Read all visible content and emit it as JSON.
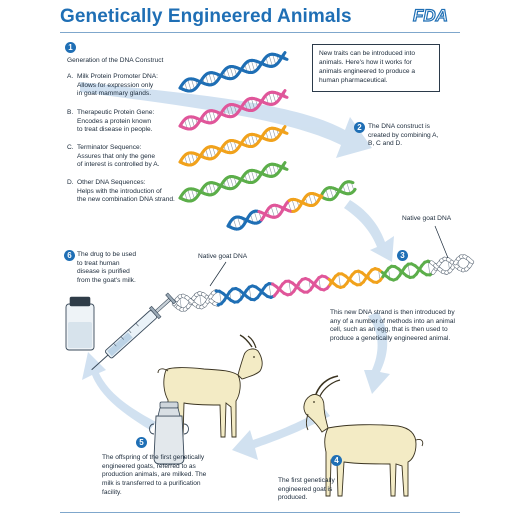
{
  "header": {
    "title": "Genetically Engineered Animals",
    "logo": "FDA"
  },
  "intro": "New traits can be introduced into animals. Here's how it works for animals engineered to produce a human pharmaceutical.",
  "steps": {
    "s1": {
      "num": "1",
      "title": "Generation of the DNA Construct"
    },
    "s2": {
      "num": "2",
      "text": "The DNA construct is created by combining A, B, C and D."
    },
    "s3": {
      "num": "3",
      "text": "This new DNA strand is then introduced by any of a number of methods into an animal cell, such as an egg, that is then used to produce a genetically engineered animal."
    },
    "s4": {
      "num": "4",
      "text": "The first genetically engineered goat is produced."
    },
    "s5": {
      "num": "5",
      "text": "The offspring of the first genetically engineered goats, referred to as production animals, are milked. The milk is transferred to a purification facility."
    },
    "s6": {
      "num": "6",
      "text": "The drug to be used to treat human disease is purified from the goat's milk."
    }
  },
  "components": [
    {
      "letter": "A.",
      "name": "Milk Protein Promoter DNA:",
      "desc": [
        "Allows for expression only",
        "in goat mammary glands."
      ],
      "color": "#1f6fb5"
    },
    {
      "letter": "B.",
      "name": "Therapeutic Protein Gene:",
      "desc": [
        "Encodes a protein known",
        "to treat disease in people."
      ],
      "color": "#e0569a"
    },
    {
      "letter": "C.",
      "name": "Terminator Sequence:",
      "desc": [
        "Assures that only the gene",
        "of interest is controlled by A."
      ],
      "color": "#f1a21c"
    },
    {
      "letter": "D.",
      "name": "Other DNA Sequences:",
      "desc": [
        "Helps with the introduction of",
        "the new combination DNA strand."
      ],
      "color": "#5cae4a"
    }
  ],
  "labels": {
    "goat_dna_right": "Native goat DNA",
    "goat_dna_left": "Native goat DNA"
  },
  "colors": {
    "title": "#1f6fb5",
    "badge": "#1f6fb5",
    "arrow": "#c9dcee",
    "goat_dna": "#ffffff",
    "goat": "#f3ebc5"
  },
  "icons": [
    "dna-helix-icon",
    "syringe-icon",
    "vial-icon",
    "goat-icon",
    "milk-can-icon",
    "flow-arrow-icon"
  ]
}
